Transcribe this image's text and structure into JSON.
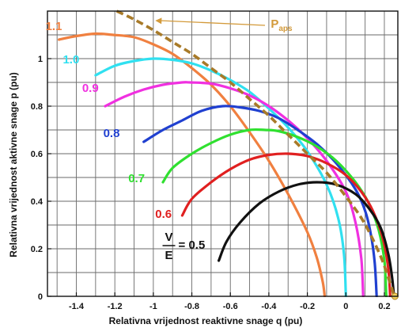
{
  "chart_data": {
    "type": "line",
    "title": "",
    "xlabel": "Relativna vrijednost reaktivne snage q (pu)",
    "ylabel": "Relativna vrijednost aktivne snage p (pu)",
    "xlim": [
      -1.55,
      0.27
    ],
    "ylim": [
      0,
      1.2
    ],
    "grid": true,
    "x_ticks": [
      "-1.4",
      "-1.2",
      "-1",
      "-0.8",
      "-0.6",
      "-0.4",
      "-0.2",
      "0",
      "0.2"
    ],
    "y_ticks": [
      "0",
      "0.2",
      "0.4",
      "0.6",
      "0.8",
      "1"
    ],
    "series": [
      {
        "name": "1.1",
        "color": "#f08040",
        "x": [
          -1.49,
          -1.4,
          -1.3,
          -1.21,
          -1.1,
          -1.0,
          -0.9,
          -0.8,
          -0.7,
          -0.6,
          -0.5,
          -0.4,
          -0.3,
          -0.2,
          -0.15,
          -0.12,
          -0.11
        ],
        "y": [
          1.08,
          1.095,
          1.105,
          1.1,
          1.09,
          1.06,
          1.02,
          0.96,
          0.89,
          0.8,
          0.69,
          0.57,
          0.43,
          0.27,
          0.16,
          0.06,
          0.0
        ]
      },
      {
        "name": "1.0",
        "color": "#30e0f0",
        "x": [
          -1.3,
          -1.2,
          -1.1,
          -1.0,
          -0.9,
          -0.8,
          -0.7,
          -0.6,
          -0.5,
          -0.4,
          -0.3,
          -0.2,
          -0.1,
          -0.04,
          -0.01,
          0.0
        ],
        "y": [
          0.93,
          0.97,
          0.99,
          1.0,
          0.995,
          0.98,
          0.95,
          0.91,
          0.86,
          0.79,
          0.71,
          0.61,
          0.47,
          0.33,
          0.18,
          0.0
        ]
      },
      {
        "name": "0.9",
        "color": "#f030e0",
        "x": [
          -1.25,
          -1.15,
          -1.05,
          -0.95,
          -0.85,
          -0.81,
          -0.7,
          -0.6,
          -0.5,
          -0.4,
          -0.3,
          -0.2,
          -0.1,
          0.0,
          0.05,
          0.08,
          0.09
        ],
        "y": [
          0.8,
          0.84,
          0.87,
          0.89,
          0.9,
          0.9,
          0.895,
          0.875,
          0.845,
          0.8,
          0.74,
          0.665,
          0.57,
          0.44,
          0.31,
          0.16,
          0.0
        ]
      },
      {
        "name": "0.8",
        "color": "#2040d0",
        "x": [
          -1.05,
          -0.95,
          -0.85,
          -0.75,
          -0.64,
          -0.55,
          -0.45,
          -0.35,
          -0.25,
          -0.15,
          -0.05,
          0.05,
          0.1,
          0.13,
          0.15,
          0.16
        ],
        "y": [
          0.65,
          0.7,
          0.74,
          0.78,
          0.8,
          0.795,
          0.78,
          0.75,
          0.7,
          0.64,
          0.56,
          0.45,
          0.36,
          0.26,
          0.14,
          0.0
        ]
      },
      {
        "name": "0.7",
        "color": "#30e030",
        "x": [
          -0.95,
          -0.9,
          -0.8,
          -0.7,
          -0.6,
          -0.5,
          -0.42,
          -0.35,
          -0.25,
          -0.15,
          -0.05,
          0.05,
          0.12,
          0.17,
          0.2,
          0.21
        ],
        "y": [
          0.48,
          0.54,
          0.6,
          0.645,
          0.68,
          0.7,
          0.7,
          0.695,
          0.67,
          0.63,
          0.57,
          0.48,
          0.39,
          0.28,
          0.15,
          0.0
        ]
      },
      {
        "name": "0.6",
        "color": "#e02020",
        "x": [
          -0.85,
          -0.8,
          -0.7,
          -0.6,
          -0.5,
          -0.4,
          -0.3,
          -0.2,
          -0.1,
          0.0,
          0.08,
          0.14,
          0.19,
          0.22,
          0.23
        ],
        "y": [
          0.34,
          0.41,
          0.48,
          0.535,
          0.575,
          0.595,
          0.6,
          0.59,
          0.56,
          0.51,
          0.44,
          0.36,
          0.25,
          0.12,
          0.0
        ]
      },
      {
        "name": "0.5",
        "color": "#111111",
        "x": [
          -0.66,
          -0.62,
          -0.55,
          -0.45,
          -0.35,
          -0.25,
          -0.15,
          -0.05,
          0.05,
          0.12,
          0.18,
          0.22,
          0.24,
          0.25
        ],
        "y": [
          0.15,
          0.23,
          0.31,
          0.39,
          0.44,
          0.47,
          0.48,
          0.47,
          0.43,
          0.37,
          0.29,
          0.18,
          0.08,
          0.0
        ]
      },
      {
        "name": "Paps",
        "color": "#a87a28",
        "dashed": true,
        "x": [
          -1.19,
          -1.1,
          -1.0,
          -0.9,
          -0.8,
          -0.7,
          -0.6,
          -0.5,
          -0.4,
          -0.3,
          -0.2,
          -0.1,
          0.0,
          0.08,
          0.14,
          0.19,
          0.22,
          0.24,
          0.25
        ],
        "y": [
          1.2,
          1.165,
          1.12,
          1.07,
          1.02,
          0.96,
          0.9,
          0.83,
          0.76,
          0.68,
          0.6,
          0.52,
          0.42,
          0.33,
          0.24,
          0.15,
          0.08,
          0.03,
          0.0
        ]
      }
    ],
    "curve_labels": [
      {
        "text": "1.1",
        "color": "#f08040",
        "x": -1.56,
        "y": 1.12
      },
      {
        "text": "1.0",
        "color": "#30e0f0",
        "x": -1.47,
        "y": 0.98
      },
      {
        "text": "0.9",
        "color": "#f030e0",
        "x": -1.37,
        "y": 0.86
      },
      {
        "text": "0.8",
        "color": "#2040d0",
        "x": -1.26,
        "y": 0.67
      },
      {
        "text": "0.7",
        "color": "#30e030",
        "x": -1.13,
        "y": 0.48
      },
      {
        "text": "0.6",
        "color": "#e02020",
        "x": -0.99,
        "y": 0.33
      },
      {
        "text": "= 0.5",
        "color": "#111111",
        "x": -0.87,
        "y": 0.2
      }
    ],
    "ratio_label": {
      "numerator": "V",
      "denominator": "E"
    },
    "paps_label": {
      "main": "P",
      "sub": "aps",
      "color": "#d39a3a",
      "x": -0.39,
      "y": 1.13
    },
    "arrow": {
      "from": [
        -0.42,
        1.14
      ],
      "to": [
        -0.99,
        1.16
      ],
      "color": "#d39a3a"
    },
    "marker_point": {
      "x": 0.255,
      "y": 0.0,
      "color": "#f0d060"
    }
  }
}
